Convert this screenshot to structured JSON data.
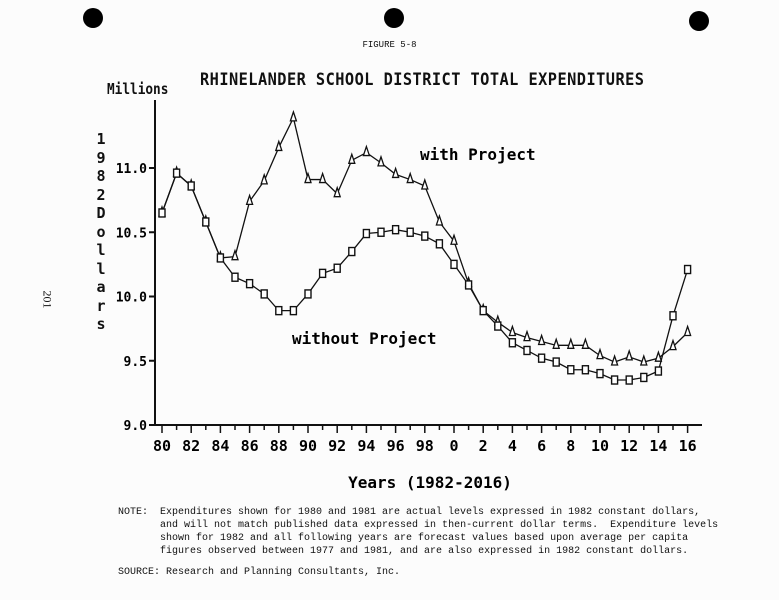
{
  "figure_label": "FIGURE 5-8",
  "page_number": "201",
  "chart_data": {
    "type": "line",
    "title": "RHINELANDER SCHOOL DISTRICT TOTAL EXPENDITURES",
    "units_label": "Millions",
    "ylabel": "1982 Dollars",
    "xlabel": "Years (1982-2016)",
    "ylim": [
      9.0,
      11.5
    ],
    "yticks": [
      "9.0",
      "9.5",
      "10.0",
      "10.5",
      "11.0"
    ],
    "xticks": [
      "80",
      "82",
      "84",
      "86",
      "88",
      "90",
      "92",
      "94",
      "96",
      "98",
      "0",
      "2",
      "4",
      "6",
      "8",
      "10",
      "12",
      "14",
      "16"
    ],
    "x": [
      1980,
      1981,
      1982,
      1983,
      1984,
      1985,
      1986,
      1987,
      1988,
      1989,
      1990,
      1991,
      1992,
      1993,
      1994,
      1995,
      1996,
      1997,
      1998,
      1999,
      2000,
      2001,
      2002,
      2003,
      2004,
      2005,
      2006,
      2007,
      2008,
      2009,
      2010,
      2011,
      2012,
      2013,
      2014,
      2015,
      2016
    ],
    "series": [
      {
        "name": "with Project",
        "marker": "triangle",
        "values": [
          10.65,
          10.96,
          10.86,
          10.58,
          10.3,
          10.31,
          10.74,
          10.9,
          11.16,
          11.39,
          10.91,
          10.91,
          10.8,
          11.06,
          11.12,
          11.04,
          10.95,
          10.91,
          10.86,
          10.58,
          10.43,
          10.1,
          9.89,
          9.8,
          9.72,
          9.68,
          9.65,
          9.62,
          9.62,
          9.62,
          9.54,
          9.49,
          9.53,
          9.49,
          9.52,
          9.61,
          9.72
        ]
      },
      {
        "name": "without Project",
        "marker": "square",
        "values": [
          10.65,
          10.96,
          10.86,
          10.58,
          10.3,
          10.15,
          10.1,
          10.02,
          9.89,
          9.89,
          10.02,
          10.18,
          10.22,
          10.35,
          10.49,
          10.5,
          10.52,
          10.5,
          10.47,
          10.41,
          10.25,
          10.09,
          9.89,
          9.77,
          9.64,
          9.58,
          9.52,
          9.49,
          9.43,
          9.43,
          9.4,
          9.35,
          9.35,
          9.37,
          9.42,
          9.85,
          10.21
        ]
      }
    ]
  },
  "note": "NOTE:  Expenditures shown for 1980 and 1981 are actual levels expressed in 1982 constant dollars,\n       and will not match published data expressed in then-current dollar terms.  Expenditure levels\n       shown for 1982 and all following years are forecast values based upon average per capita\n       figures observed between 1977 and 1981, and are also expressed in 1982 constant dollars.",
  "source": "SOURCE:  Research and Planning Consultants, Inc."
}
